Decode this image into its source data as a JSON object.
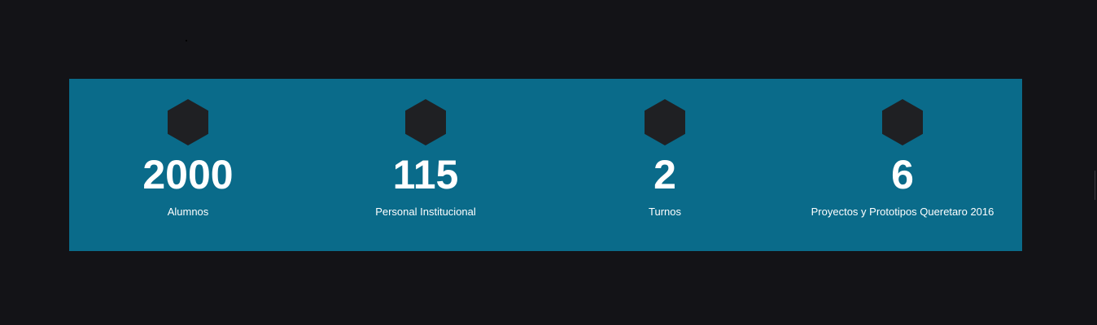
{
  "colors": {
    "page_background": "#131317",
    "panel_background": "#0a6b8a",
    "hexagon": "#1f2023",
    "text": "#ffffff"
  },
  "stats": [
    {
      "icon": "hexagon-icon",
      "value": "2000",
      "label": "Alumnos"
    },
    {
      "icon": "hexagon-icon",
      "value": "115",
      "label": "Personal Institucional"
    },
    {
      "icon": "hexagon-icon",
      "value": "2",
      "label": "Turnos"
    },
    {
      "icon": "hexagon-icon",
      "value": "6",
      "label": "Proyectos y Prototipos Queretaro 2016"
    }
  ]
}
